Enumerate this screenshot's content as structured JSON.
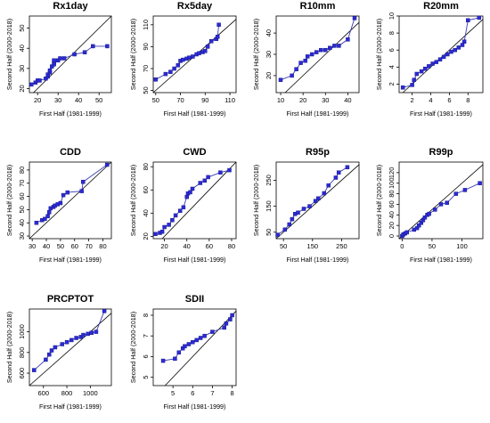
{
  "chart_data": [
    {
      "type": "scatter",
      "title": "Rx1day",
      "xlabel": "First Half (1981-1999)",
      "ylabel": "Second Half (2000-2018)",
      "xlim": [
        16,
        56
      ],
      "ylim": [
        18,
        56
      ],
      "xticks": [
        20,
        30,
        40,
        50
      ],
      "yticks": [
        20,
        30,
        40,
        50
      ],
      "line_1to1": true,
      "points": [
        [
          17,
          22
        ],
        [
          19,
          23
        ],
        [
          20,
          24
        ],
        [
          21,
          24
        ],
        [
          24,
          25
        ],
        [
          25,
          26
        ],
        [
          25,
          27
        ],
        [
          26,
          28
        ],
        [
          26,
          29
        ],
        [
          27,
          31
        ],
        [
          28,
          32
        ],
        [
          28,
          33
        ],
        [
          28,
          34
        ],
        [
          30,
          34
        ],
        [
          31,
          35
        ],
        [
          33,
          35
        ],
        [
          38,
          37
        ],
        [
          43,
          38
        ],
        [
          47,
          41
        ],
        [
          54,
          41
        ]
      ]
    },
    {
      "type": "scatter",
      "title": "Rx5day",
      "xlabel": "First Half (1981-1999)",
      "ylabel": "Second Half (2000-2018)",
      "xlim": [
        48,
        115
      ],
      "ylim": [
        48,
        118
      ],
      "xticks": [
        50,
        70,
        90,
        110
      ],
      "yticks": [
        50,
        70,
        90,
        110
      ],
      "line_1to1": true,
      "points": [
        [
          50,
          60
        ],
        [
          58,
          65
        ],
        [
          62,
          67
        ],
        [
          65,
          70
        ],
        [
          68,
          73
        ],
        [
          70,
          77
        ],
        [
          72,
          78
        ],
        [
          75,
          79
        ],
        [
          77,
          80
        ],
        [
          80,
          81
        ],
        [
          83,
          83
        ],
        [
          85,
          84
        ],
        [
          88,
          85
        ],
        [
          90,
          86
        ],
        [
          92,
          90
        ],
        [
          95,
          95
        ],
        [
          99,
          97
        ],
        [
          100,
          99
        ],
        [
          101,
          110
        ]
      ]
    },
    {
      "type": "scatter",
      "title": "R10mm",
      "xlabel": "First Half (1981-1999)",
      "ylabel": "Second Half (2000-2018)",
      "xlim": [
        8,
        45
      ],
      "ylim": [
        12,
        48
      ],
      "xticks": [
        10,
        20,
        30,
        40
      ],
      "yticks": [
        20,
        30,
        40
      ],
      "line_1to1": true,
      "points": [
        [
          10,
          18
        ],
        [
          15,
          20
        ],
        [
          17,
          23
        ],
        [
          19,
          26
        ],
        [
          21,
          27
        ],
        [
          22,
          29
        ],
        [
          24,
          30
        ],
        [
          26,
          31
        ],
        [
          28,
          32
        ],
        [
          30,
          32
        ],
        [
          32,
          33
        ],
        [
          34,
          34
        ],
        [
          36,
          34
        ],
        [
          40,
          37
        ],
        [
          43,
          47
        ]
      ]
    },
    {
      "type": "scatter",
      "title": "R20mm",
      "xlabel": "First Half (1981-1999)",
      "ylabel": "Second Half (2000-2018)",
      "xlim": [
        0.6,
        9.6
      ],
      "ylim": [
        1,
        10
      ],
      "xticks": [
        2,
        4,
        6,
        8
      ],
      "yticks": [
        2,
        4,
        6,
        8,
        10
      ],
      "line_1to1": true,
      "points": [
        [
          1,
          1.6
        ],
        [
          2,
          1.9
        ],
        [
          2.2,
          2.5
        ],
        [
          2.5,
          3.2
        ],
        [
          3,
          3.5
        ],
        [
          3.4,
          3.8
        ],
        [
          3.8,
          4.1
        ],
        [
          4.2,
          4.4
        ],
        [
          4.6,
          4.6
        ],
        [
          5,
          4.9
        ],
        [
          5.4,
          5.2
        ],
        [
          5.8,
          5.5
        ],
        [
          6.2,
          5.8
        ],
        [
          6.6,
          6.0
        ],
        [
          7,
          6.3
        ],
        [
          7.4,
          6.6
        ],
        [
          7.6,
          7.0
        ],
        [
          8,
          9.5
        ],
        [
          9.2,
          9.8
        ]
      ]
    },
    {
      "type": "scatter",
      "title": "CDD",
      "xlabel": "First Half (1981-1999)",
      "ylabel": "Second Half (2000-2018)",
      "xlim": [
        28,
        86
      ],
      "ylim": [
        28,
        86
      ],
      "xticks": [
        30,
        40,
        50,
        60,
        70,
        80
      ],
      "yticks": [
        30,
        40,
        50,
        60,
        70,
        80
      ],
      "line_1to1": true,
      "points": [
        [
          33,
          40
        ],
        [
          37,
          42
        ],
        [
          39,
          43
        ],
        [
          41,
          45
        ],
        [
          42,
          48
        ],
        [
          43,
          51
        ],
        [
          45,
          52
        ],
        [
          46,
          53
        ],
        [
          48,
          54
        ],
        [
          50,
          55
        ],
        [
          52,
          61
        ],
        [
          55,
          63
        ],
        [
          65,
          64
        ],
        [
          66,
          71
        ],
        [
          83,
          84
        ]
      ]
    },
    {
      "type": "scatter",
      "title": "CWD",
      "xlabel": "First Half (1981-1999)",
      "ylabel": "Second Half (2000-2018)",
      "xlim": [
        10,
        84
      ],
      "ylim": [
        18,
        84
      ],
      "xticks": [
        20,
        40,
        60,
        80
      ],
      "yticks": [
        20,
        40,
        60,
        80
      ],
      "line_1to1": true,
      "points": [
        [
          12,
          22
        ],
        [
          16,
          23
        ],
        [
          18,
          24
        ],
        [
          20,
          28
        ],
        [
          24,
          30
        ],
        [
          27,
          34
        ],
        [
          30,
          38
        ],
        [
          34,
          42
        ],
        [
          37,
          45
        ],
        [
          40,
          54
        ],
        [
          41,
          57
        ],
        [
          43,
          58
        ],
        [
          45,
          61
        ],
        [
          52,
          66
        ],
        [
          56,
          68
        ],
        [
          59,
          71
        ],
        [
          70,
          75
        ],
        [
          78,
          77
        ]
      ]
    },
    {
      "type": "scatter",
      "title": "R95p",
      "xlabel": "First Half (1981-1999)",
      "ylabel": "Second Half (2000-2018)",
      "xlim": [
        25,
        310
      ],
      "ylim": [
        25,
        320
      ],
      "xticks": [
        50,
        150,
        250
      ],
      "yticks": [
        50,
        150,
        250
      ],
      "line_1to1": true,
      "points": [
        [
          30,
          40
        ],
        [
          55,
          60
        ],
        [
          70,
          80
        ],
        [
          80,
          100
        ],
        [
          90,
          120
        ],
        [
          100,
          125
        ],
        [
          120,
          140
        ],
        [
          140,
          150
        ],
        [
          160,
          170
        ],
        [
          170,
          180
        ],
        [
          190,
          200
        ],
        [
          205,
          230
        ],
        [
          230,
          260
        ],
        [
          240,
          280
        ],
        [
          270,
          300
        ]
      ]
    },
    {
      "type": "scatter",
      "title": "R99p",
      "xlabel": "First Half (1981-1999)",
      "ylabel": "Second Half (2000-2018)",
      "xlim": [
        -5,
        135
      ],
      "ylim": [
        -5,
        140
      ],
      "xticks": [
        0,
        50,
        100
      ],
      "yticks": [
        0,
        20,
        40,
        60,
        80,
        100,
        120
      ],
      "line_1to1": true,
      "points": [
        [
          0,
          0
        ],
        [
          2,
          3
        ],
        [
          5,
          5
        ],
        [
          8,
          7
        ],
        [
          20,
          12
        ],
        [
          25,
          15
        ],
        [
          28,
          20
        ],
        [
          32,
          25
        ],
        [
          35,
          30
        ],
        [
          38,
          35
        ],
        [
          42,
          40
        ],
        [
          45,
          42
        ],
        [
          55,
          50
        ],
        [
          65,
          60
        ],
        [
          75,
          63
        ],
        [
          90,
          80
        ],
        [
          105,
          87
        ],
        [
          130,
          100
        ]
      ]
    },
    {
      "type": "scatter",
      "title": "PRCPTOT",
      "xlabel": "First Half (1981-1999)",
      "ylabel": "Second Half (2000-2018)",
      "xlim": [
        480,
        1180
      ],
      "ylim": [
        480,
        1220
      ],
      "xticks": [
        600,
        800,
        1000
      ],
      "yticks": [
        600,
        800,
        1000
      ],
      "line_1to1": true,
      "points": [
        [
          520,
          630
        ],
        [
          620,
          730
        ],
        [
          650,
          780
        ],
        [
          670,
          820
        ],
        [
          700,
          850
        ],
        [
          760,
          880
        ],
        [
          800,
          900
        ],
        [
          840,
          920
        ],
        [
          880,
          940
        ],
        [
          920,
          950
        ],
        [
          940,
          970
        ],
        [
          980,
          980
        ],
        [
          1010,
          990
        ],
        [
          1050,
          1000
        ],
        [
          1120,
          1200
        ]
      ]
    },
    {
      "type": "scatter",
      "title": "SDII",
      "xlabel": "First Half (1981-1999)",
      "ylabel": "Second Half (2000-2018)",
      "xlim": [
        4,
        8.2
      ],
      "ylim": [
        4.6,
        8.3
      ],
      "xticks": [
        5,
        6,
        7,
        8
      ],
      "yticks": [
        5,
        6,
        7,
        8
      ],
      "line_1to1": true,
      "points": [
        [
          4.5,
          5.8
        ],
        [
          5.1,
          5.9
        ],
        [
          5.3,
          6.2
        ],
        [
          5.5,
          6.4
        ],
        [
          5.6,
          6.5
        ],
        [
          5.8,
          6.6
        ],
        [
          6.0,
          6.7
        ],
        [
          6.2,
          6.8
        ],
        [
          6.4,
          6.9
        ],
        [
          6.6,
          7.0
        ],
        [
          7.0,
          7.2
        ],
        [
          7.6,
          7.4
        ],
        [
          7.7,
          7.6
        ],
        [
          7.9,
          7.8
        ],
        [
          8.0,
          8.0
        ]
      ]
    }
  ]
}
